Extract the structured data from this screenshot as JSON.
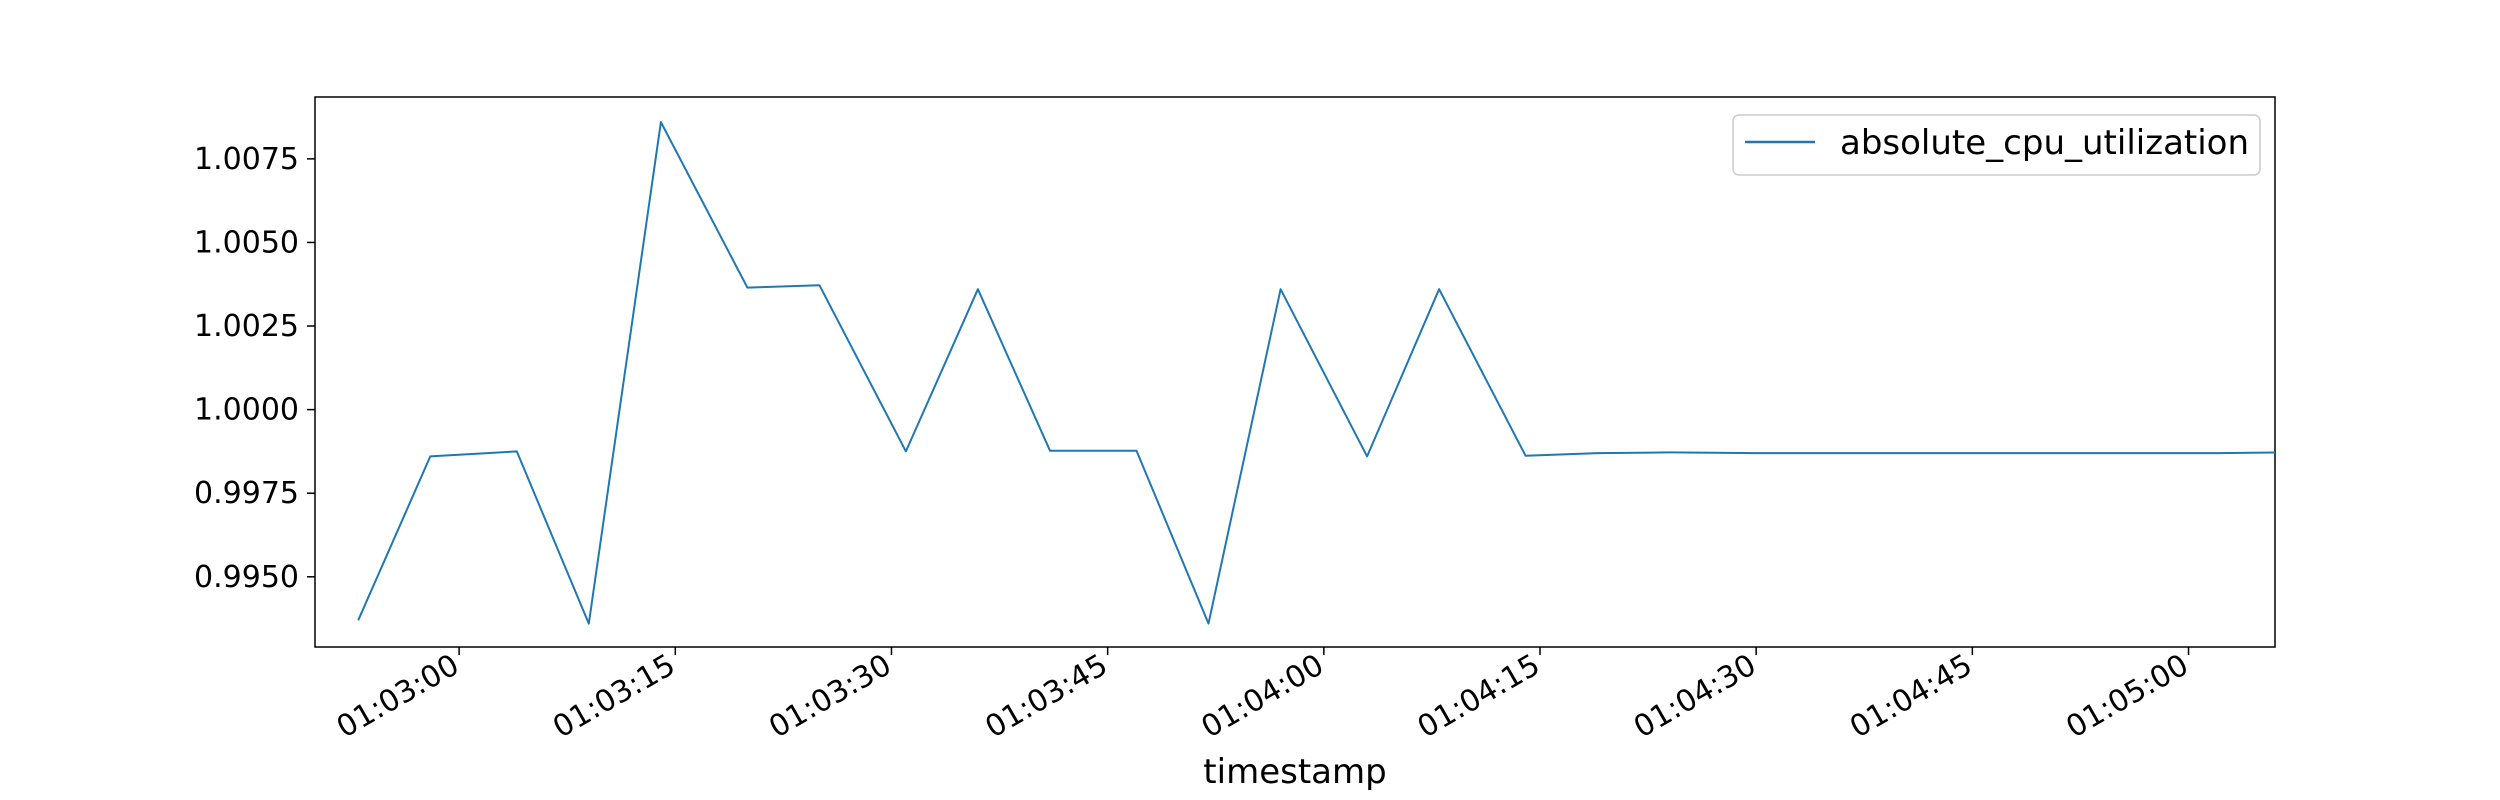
{
  "chart_data": {
    "type": "line",
    "title": "",
    "xlabel": "timestamp",
    "ylabel": "",
    "x": [
      "01:02:53",
      "01:02:58",
      "01:03:04",
      "01:03:09",
      "01:03:14",
      "01:03:20",
      "01:03:25",
      "01:03:31",
      "01:03:36",
      "01:03:41",
      "01:03:47",
      "01:03:52",
      "01:03:57",
      "01:04:03",
      "01:04:08",
      "01:04:14",
      "01:04:19",
      "01:04:24",
      "01:04:30",
      "01:04:35",
      "01:04:40",
      "01:04:46",
      "01:04:51",
      "01:04:57",
      "01:05:02",
      "01:05:07"
    ],
    "series": [
      {
        "name": "absolute_cpu_utilization",
        "color": "#1f77b4",
        "values": [
          0.9937,
          0.9986,
          0.99875,
          0.9936,
          1.0086,
          1.00365,
          1.00372,
          0.99875,
          1.0036,
          0.99877,
          0.99877,
          0.9936,
          1.0036,
          0.9986,
          1.0036,
          0.99862,
          0.9987,
          0.99872,
          0.9987,
          0.9987,
          0.9987,
          0.9987,
          0.9987,
          0.9987,
          0.9987,
          0.99872
        ]
      }
    ],
    "x_ticks": [
      "01:03:00",
      "01:03:15",
      "01:03:30",
      "01:03:45",
      "01:04:00",
      "01:04:15",
      "01:04:30",
      "01:04:45",
      "01:05:00"
    ],
    "y_ticks": [
      "0.9950",
      "0.9975",
      "1.0000",
      "1.0025",
      "1.0050",
      "1.0075"
    ],
    "xlim": [
      "01:02:50",
      "01:05:06"
    ],
    "ylim": [
      0.9929,
      1.00935
    ],
    "legend": "top-right",
    "grid": false
  }
}
